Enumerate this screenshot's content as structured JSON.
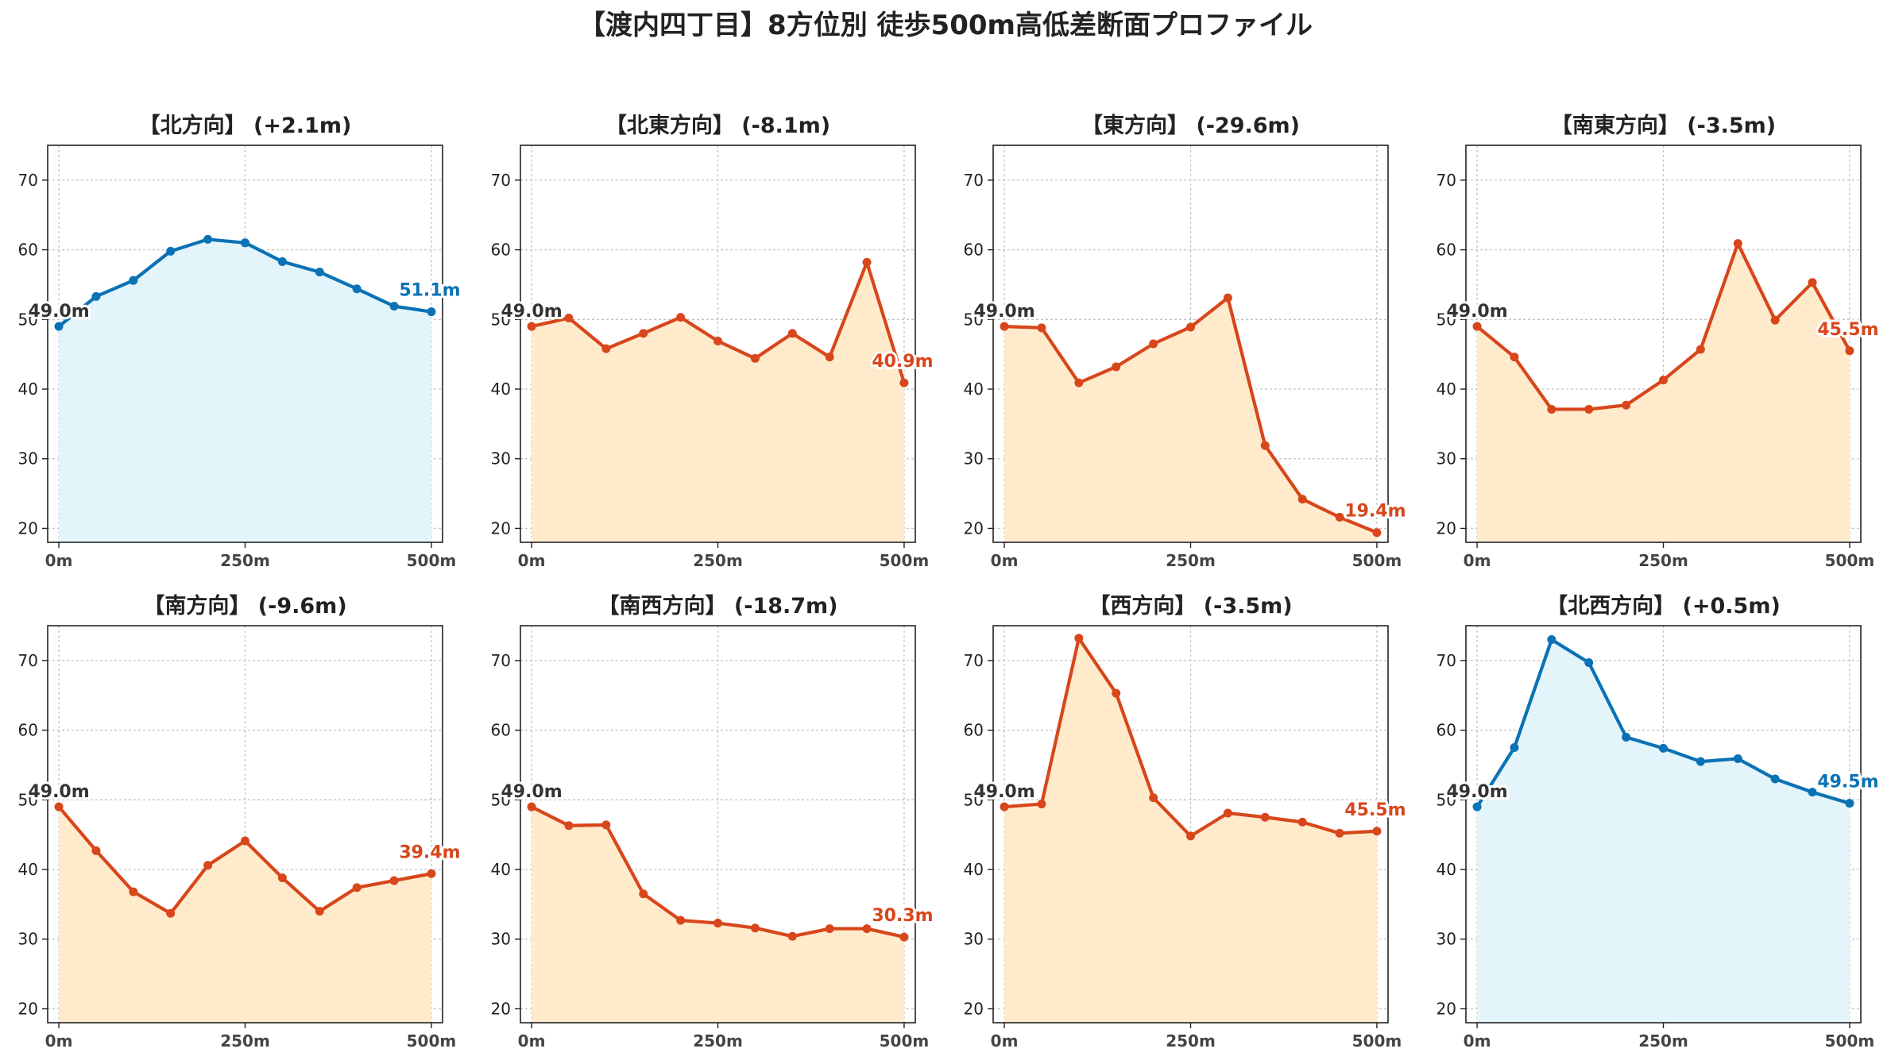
{
  "page_title": "【渡内四丁目】8方位別 徒歩500m高低差断面プロファイル",
  "colors": {
    "up_line": "#0a72b5",
    "up_fill": "#e4f4fb",
    "down_line": "#d8461b",
    "down_fill": "#ffebcc",
    "start_label": "#333333",
    "grid": "#c4c4c4",
    "axis": "#222222"
  },
  "chart_data": [
    {
      "type": "area",
      "title": "【北方向】 (+2.1m)",
      "trend": "up",
      "x": [
        0,
        50,
        100,
        150,
        200,
        250,
        300,
        350,
        400,
        450,
        500
      ],
      "y": [
        49.0,
        53.3,
        55.6,
        59.8,
        61.5,
        61.0,
        58.3,
        56.8,
        54.4,
        51.9,
        51.1
      ],
      "start_label": "49.0m",
      "end_label": "51.1m",
      "xticks": [
        "0m",
        "250m",
        "500m"
      ],
      "yticks": [
        "20",
        "30",
        "40",
        "50",
        "60",
        "70"
      ],
      "ylim": [
        18,
        75
      ],
      "xlim": [
        -15,
        515
      ],
      "grid": true
    },
    {
      "type": "area",
      "title": "【北東方向】 (-8.1m)",
      "trend": "down",
      "x": [
        0,
        50,
        100,
        150,
        200,
        250,
        300,
        350,
        400,
        450,
        500
      ],
      "y": [
        49.0,
        50.2,
        45.8,
        48.0,
        50.3,
        46.9,
        44.4,
        48.0,
        44.6,
        58.2,
        40.9
      ],
      "start_label": "49.0m",
      "end_label": "40.9m",
      "xticks": [
        "0m",
        "250m",
        "500m"
      ],
      "yticks": [
        "20",
        "30",
        "40",
        "50",
        "60",
        "70"
      ],
      "ylim": [
        18,
        75
      ],
      "xlim": [
        -15,
        515
      ],
      "grid": true
    },
    {
      "type": "area",
      "title": "【東方向】 (-29.6m)",
      "trend": "down",
      "x": [
        0,
        50,
        100,
        150,
        200,
        250,
        300,
        350,
        400,
        450,
        500
      ],
      "y": [
        49.0,
        48.8,
        40.9,
        43.2,
        46.5,
        48.9,
        53.1,
        31.9,
        24.2,
        21.6,
        19.4
      ],
      "start_label": "49.0m",
      "end_label": "19.4m",
      "xticks": [
        "0m",
        "250m",
        "500m"
      ],
      "yticks": [
        "20",
        "30",
        "40",
        "50",
        "60",
        "70"
      ],
      "ylim": [
        18,
        75
      ],
      "xlim": [
        -15,
        515
      ],
      "grid": true
    },
    {
      "type": "area",
      "title": "【南東方向】 (-3.5m)",
      "trend": "down",
      "x": [
        0,
        50,
        100,
        150,
        200,
        250,
        300,
        350,
        400,
        450,
        500
      ],
      "y": [
        49.0,
        44.6,
        37.1,
        37.1,
        37.7,
        41.3,
        45.7,
        60.9,
        49.9,
        55.3,
        45.5
      ],
      "start_label": "49.0m",
      "end_label": "45.5m",
      "xticks": [
        "0m",
        "250m",
        "500m"
      ],
      "yticks": [
        "20",
        "30",
        "40",
        "50",
        "60",
        "70"
      ],
      "ylim": [
        18,
        75
      ],
      "xlim": [
        -15,
        515
      ],
      "grid": true
    },
    {
      "type": "area",
      "title": "【南方向】 (-9.6m)",
      "trend": "down",
      "x": [
        0,
        50,
        100,
        150,
        200,
        250,
        300,
        350,
        400,
        450,
        500
      ],
      "y": [
        49.0,
        42.7,
        36.8,
        33.7,
        40.6,
        44.1,
        38.8,
        34.0,
        37.4,
        38.4,
        39.4
      ],
      "start_label": "49.0m",
      "end_label": "39.4m",
      "xticks": [
        "0m",
        "250m",
        "500m"
      ],
      "yticks": [
        "20",
        "30",
        "40",
        "50",
        "60",
        "70"
      ],
      "ylim": [
        18,
        75
      ],
      "xlim": [
        -15,
        515
      ],
      "grid": true
    },
    {
      "type": "area",
      "title": "【南西方向】 (-18.7m)",
      "trend": "down",
      "x": [
        0,
        50,
        100,
        150,
        200,
        250,
        300,
        350,
        400,
        450,
        500
      ],
      "y": [
        49.0,
        46.3,
        46.4,
        36.5,
        32.7,
        32.3,
        31.6,
        30.4,
        31.5,
        31.5,
        30.3
      ],
      "start_label": "49.0m",
      "end_label": "30.3m",
      "xticks": [
        "0m",
        "250m",
        "500m"
      ],
      "yticks": [
        "20",
        "30",
        "40",
        "50",
        "60",
        "70"
      ],
      "ylim": [
        18,
        75
      ],
      "xlim": [
        -15,
        515
      ],
      "grid": true
    },
    {
      "type": "area",
      "title": "【西方向】 (-3.5m)",
      "trend": "down",
      "x": [
        0,
        50,
        100,
        150,
        200,
        250,
        300,
        350,
        400,
        450,
        500
      ],
      "y": [
        49.0,
        49.4,
        73.2,
        65.3,
        50.3,
        44.8,
        48.1,
        47.5,
        46.8,
        45.2,
        45.5
      ],
      "start_label": "49.0m",
      "end_label": "45.5m",
      "xticks": [
        "0m",
        "250m",
        "500m"
      ],
      "yticks": [
        "20",
        "30",
        "40",
        "50",
        "60",
        "70"
      ],
      "ylim": [
        18,
        75
      ],
      "xlim": [
        -15,
        515
      ],
      "grid": true
    },
    {
      "type": "area",
      "title": "【北西方向】 (+0.5m)",
      "trend": "up",
      "x": [
        0,
        50,
        100,
        150,
        200,
        250,
        300,
        350,
        400,
        450,
        500
      ],
      "y": [
        49.0,
        57.5,
        73.0,
        69.7,
        59.0,
        57.4,
        55.5,
        55.9,
        53.0,
        51.1,
        49.5
      ],
      "start_label": "49.0m",
      "end_label": "49.5m",
      "xticks": [
        "0m",
        "250m",
        "500m"
      ],
      "yticks": [
        "20",
        "30",
        "40",
        "50",
        "60",
        "70"
      ],
      "ylim": [
        18,
        75
      ],
      "xlim": [
        -15,
        515
      ],
      "grid": true
    }
  ]
}
